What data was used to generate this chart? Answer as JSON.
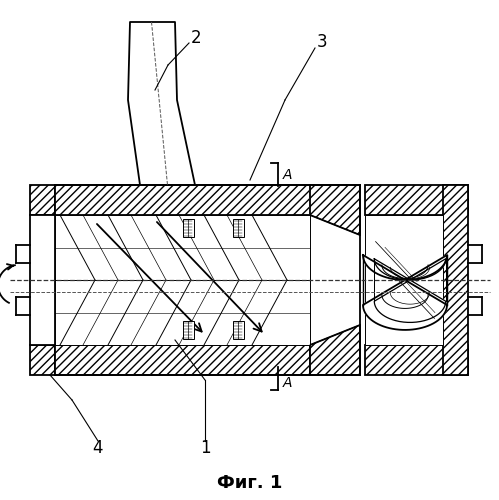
{
  "title": "Фиг. 1",
  "bg_color": "#ffffff",
  "line_color": "#000000",
  "title_fontsize": 13,
  "lw_main": 1.3,
  "lw_thin": 0.7,
  "lw_hatch": 0.5
}
